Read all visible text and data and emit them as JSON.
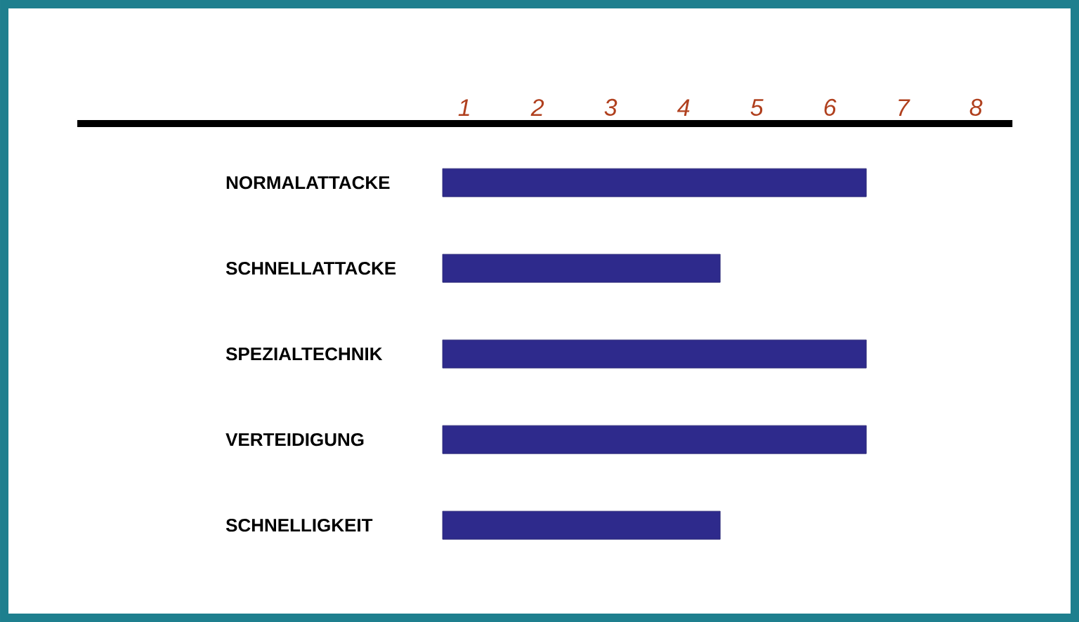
{
  "chart_data": {
    "type": "bar",
    "orientation": "horizontal",
    "categories": [
      "NORMALATTACKE",
      "SCHNELLATTACKE",
      "SPEZIALTECHNIK",
      "VERTEIDIGUNG",
      "SCHNELLIGKEIT"
    ],
    "base": [
      0.7,
      0.7,
      0.7,
      0.7,
      0.7
    ],
    "values": [
      5.8,
      3.8,
      5.8,
      5.8,
      3.8
    ],
    "color": "#2e2a8c",
    "xlim": [
      -4.3,
      8.5
    ],
    "xticks": [
      1,
      2,
      3,
      4,
      5,
      6,
      7,
      8
    ]
  }
}
